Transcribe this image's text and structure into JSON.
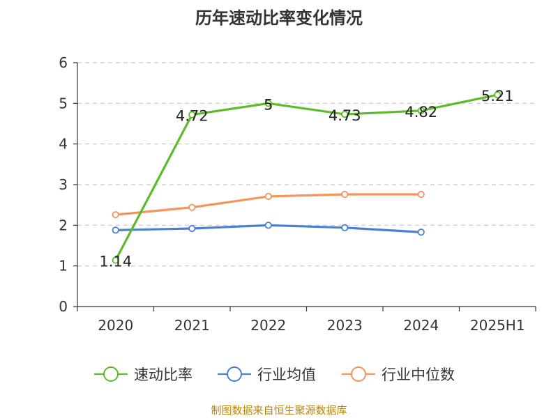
{
  "title": "历年速动比率变化情况",
  "source": "制图数据来自恒生聚源数据库",
  "chart_data": {
    "type": "line",
    "title": "历年速动比率变化情况",
    "categories": [
      "2020",
      "2021",
      "2022",
      "2023",
      "2024",
      "2025H1"
    ],
    "ylim": [
      0,
      6
    ],
    "yticks": [
      "0",
      "1",
      "2",
      "3",
      "4",
      "5",
      "6"
    ],
    "grid": true,
    "legend_position": "bottom",
    "series": [
      {
        "name": "速动比率",
        "color": "#5dbb2a",
        "values": [
          1.14,
          4.72,
          5,
          4.73,
          4.82,
          5.21
        ],
        "labels": [
          "1.14",
          "4.72",
          "5",
          "4.73",
          "4.82",
          "5.21"
        ]
      },
      {
        "name": "行业均值",
        "color": "#4a7fd6",
        "values": [
          1.88,
          1.92,
          2.0,
          1.94,
          1.83,
          null
        ]
      },
      {
        "name": "行业中位数",
        "color": "#f4935a",
        "values": [
          2.26,
          2.44,
          2.71,
          2.76,
          2.76,
          null
        ]
      }
    ]
  }
}
